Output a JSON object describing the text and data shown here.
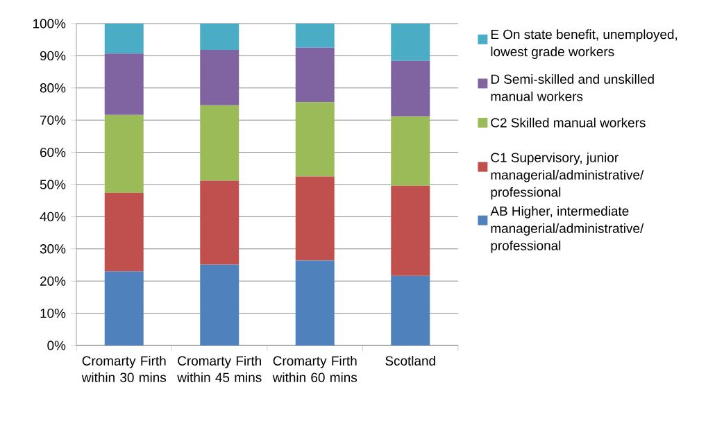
{
  "chart_data": {
    "type": "bar",
    "stacked": true,
    "categories": [
      "Cromarty Firth within 30 mins",
      "Cromarty Firth within 45 mins",
      "Cromarty Firth within 60 mins",
      "Scotland"
    ],
    "series": [
      {
        "name": "AB Higher, intermediate managerial/administrative/ professional",
        "color": "#4f81bd",
        "values": [
          23.0,
          25.1,
          26.4,
          21.6
        ]
      },
      {
        "name": "C1 Supervisory, junior managerial/administrative/ professional",
        "color": "#c0504d",
        "values": [
          24.4,
          26.1,
          26.1,
          28.0
        ]
      },
      {
        "name": "C2 Skilled manual workers",
        "color": "#9bbb59",
        "values": [
          24.2,
          23.4,
          23.1,
          21.6
        ]
      },
      {
        "name": "D Semi-skilled and unskilled manual workers",
        "color": "#8064a2",
        "values": [
          19.1,
          17.2,
          16.9,
          17.2
        ]
      },
      {
        "name": "E On state benefit, unemployed, lowest grade workers",
        "color": "#4bacc6",
        "values": [
          9.3,
          8.2,
          7.5,
          11.6
        ]
      }
    ],
    "ylim": [
      0,
      100
    ],
    "yticks": [
      {
        "value": 0,
        "label": "0%"
      },
      {
        "value": 10,
        "label": "10%"
      },
      {
        "value": 20,
        "label": "20%"
      },
      {
        "value": 30,
        "label": "30%"
      },
      {
        "value": 40,
        "label": "40%"
      },
      {
        "value": 50,
        "label": "50%"
      },
      {
        "value": 60,
        "label": "60%"
      },
      {
        "value": 70,
        "label": "70%"
      },
      {
        "value": 80,
        "label": "80%"
      },
      {
        "value": 90,
        "label": "90%"
      },
      {
        "value": 100,
        "label": "100%"
      }
    ],
    "grid": "y",
    "legend": "right"
  }
}
